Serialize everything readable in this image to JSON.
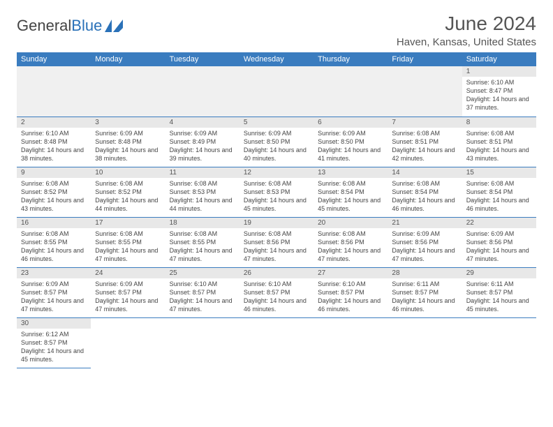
{
  "brand": {
    "part1": "General",
    "part2": "Blue"
  },
  "title": "June 2024",
  "location": "Haven, Kansas, United States",
  "colors": {
    "header_bg": "#3a7cbf",
    "header_text": "#ffffff",
    "border": "#3a7cbf",
    "daynum_bg": "#e8e8e8",
    "empty_bg": "#f0f0f0",
    "text": "#444444",
    "brand_blue": "#2a71b8"
  },
  "weekdays": [
    "Sunday",
    "Monday",
    "Tuesday",
    "Wednesday",
    "Thursday",
    "Friday",
    "Saturday"
  ],
  "first_weekday_index": 6,
  "days": [
    {
      "n": 1,
      "sunrise": "6:10 AM",
      "sunset": "8:47 PM",
      "daylight": "14 hours and 37 minutes."
    },
    {
      "n": 2,
      "sunrise": "6:10 AM",
      "sunset": "8:48 PM",
      "daylight": "14 hours and 38 minutes."
    },
    {
      "n": 3,
      "sunrise": "6:09 AM",
      "sunset": "8:48 PM",
      "daylight": "14 hours and 38 minutes."
    },
    {
      "n": 4,
      "sunrise": "6:09 AM",
      "sunset": "8:49 PM",
      "daylight": "14 hours and 39 minutes."
    },
    {
      "n": 5,
      "sunrise": "6:09 AM",
      "sunset": "8:50 PM",
      "daylight": "14 hours and 40 minutes."
    },
    {
      "n": 6,
      "sunrise": "6:09 AM",
      "sunset": "8:50 PM",
      "daylight": "14 hours and 41 minutes."
    },
    {
      "n": 7,
      "sunrise": "6:08 AM",
      "sunset": "8:51 PM",
      "daylight": "14 hours and 42 minutes."
    },
    {
      "n": 8,
      "sunrise": "6:08 AM",
      "sunset": "8:51 PM",
      "daylight": "14 hours and 43 minutes."
    },
    {
      "n": 9,
      "sunrise": "6:08 AM",
      "sunset": "8:52 PM",
      "daylight": "14 hours and 43 minutes."
    },
    {
      "n": 10,
      "sunrise": "6:08 AM",
      "sunset": "8:52 PM",
      "daylight": "14 hours and 44 minutes."
    },
    {
      "n": 11,
      "sunrise": "6:08 AM",
      "sunset": "8:53 PM",
      "daylight": "14 hours and 44 minutes."
    },
    {
      "n": 12,
      "sunrise": "6:08 AM",
      "sunset": "8:53 PM",
      "daylight": "14 hours and 45 minutes."
    },
    {
      "n": 13,
      "sunrise": "6:08 AM",
      "sunset": "8:54 PM",
      "daylight": "14 hours and 45 minutes."
    },
    {
      "n": 14,
      "sunrise": "6:08 AM",
      "sunset": "8:54 PM",
      "daylight": "14 hours and 46 minutes."
    },
    {
      "n": 15,
      "sunrise": "6:08 AM",
      "sunset": "8:54 PM",
      "daylight": "14 hours and 46 minutes."
    },
    {
      "n": 16,
      "sunrise": "6:08 AM",
      "sunset": "8:55 PM",
      "daylight": "14 hours and 46 minutes."
    },
    {
      "n": 17,
      "sunrise": "6:08 AM",
      "sunset": "8:55 PM",
      "daylight": "14 hours and 47 minutes."
    },
    {
      "n": 18,
      "sunrise": "6:08 AM",
      "sunset": "8:55 PM",
      "daylight": "14 hours and 47 minutes."
    },
    {
      "n": 19,
      "sunrise": "6:08 AM",
      "sunset": "8:56 PM",
      "daylight": "14 hours and 47 minutes."
    },
    {
      "n": 20,
      "sunrise": "6:08 AM",
      "sunset": "8:56 PM",
      "daylight": "14 hours and 47 minutes."
    },
    {
      "n": 21,
      "sunrise": "6:09 AM",
      "sunset": "8:56 PM",
      "daylight": "14 hours and 47 minutes."
    },
    {
      "n": 22,
      "sunrise": "6:09 AM",
      "sunset": "8:56 PM",
      "daylight": "14 hours and 47 minutes."
    },
    {
      "n": 23,
      "sunrise": "6:09 AM",
      "sunset": "8:57 PM",
      "daylight": "14 hours and 47 minutes."
    },
    {
      "n": 24,
      "sunrise": "6:09 AM",
      "sunset": "8:57 PM",
      "daylight": "14 hours and 47 minutes."
    },
    {
      "n": 25,
      "sunrise": "6:10 AM",
      "sunset": "8:57 PM",
      "daylight": "14 hours and 47 minutes."
    },
    {
      "n": 26,
      "sunrise": "6:10 AM",
      "sunset": "8:57 PM",
      "daylight": "14 hours and 46 minutes."
    },
    {
      "n": 27,
      "sunrise": "6:10 AM",
      "sunset": "8:57 PM",
      "daylight": "14 hours and 46 minutes."
    },
    {
      "n": 28,
      "sunrise": "6:11 AM",
      "sunset": "8:57 PM",
      "daylight": "14 hours and 46 minutes."
    },
    {
      "n": 29,
      "sunrise": "6:11 AM",
      "sunset": "8:57 PM",
      "daylight": "14 hours and 45 minutes."
    },
    {
      "n": 30,
      "sunrise": "6:12 AM",
      "sunset": "8:57 PM",
      "daylight": "14 hours and 45 minutes."
    }
  ],
  "labels": {
    "sunrise": "Sunrise:",
    "sunset": "Sunset:",
    "daylight": "Daylight:"
  }
}
